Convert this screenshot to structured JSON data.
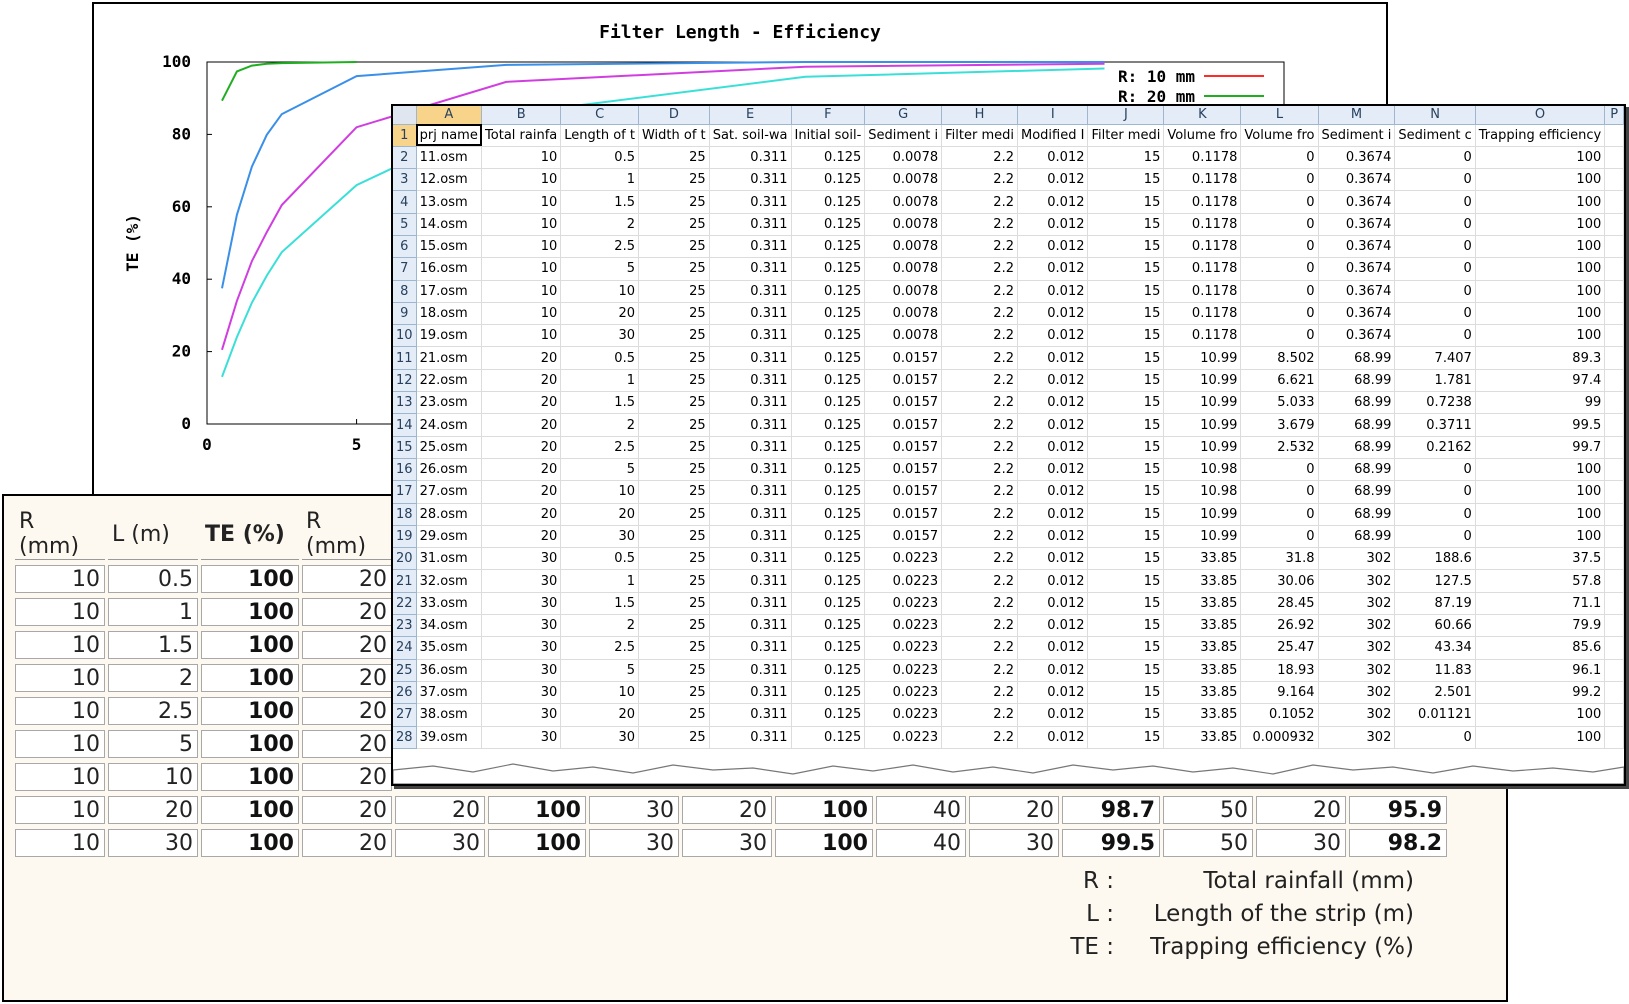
{
  "chart": {
    "title": "Filter Length - Efficiency",
    "ylabel": "TE (%)",
    "y_ticks": [
      "0",
      "20",
      "40",
      "60",
      "80",
      "100"
    ],
    "x_ticks": [
      "0",
      "5"
    ],
    "legend": [
      {
        "label": "R: 10 mm",
        "color": "#ff2a2a"
      },
      {
        "label": "R: 20 mm",
        "color": "#1fae1f"
      }
    ],
    "series_colors": [
      "#1fae1f",
      "#3a8fe8",
      "#d03ee0",
      "#3ae0d8"
    ]
  },
  "chart_data": {
    "type": "line",
    "ylim": [
      0,
      100
    ],
    "series": [
      {
        "x": [
          0.5,
          1,
          1.5,
          2,
          2.5,
          5
        ],
        "values": [
          89.3,
          97.4,
          99,
          99.5,
          99.7,
          100
        ]
      },
      {
        "x": [
          0.5,
          1,
          1.5,
          2,
          2.5,
          5,
          10,
          20,
          30
        ],
        "values": [
          37.5,
          57.8,
          71.1,
          79.9,
          85.6,
          96.1,
          99.2,
          100,
          100
        ]
      },
      {
        "x": [
          0.5,
          1,
          1.5,
          2,
          2.5,
          5,
          10,
          20,
          30
        ],
        "values": [
          20.5,
          34,
          45,
          53,
          60.5,
          82,
          94.5,
          98.7,
          99.5
        ]
      },
      {
        "x": [
          0.5,
          1,
          1.5,
          2,
          2.5,
          5,
          10,
          20,
          30
        ],
        "values": [
          13,
          24,
          33.5,
          41,
          47.5,
          66,
          85.5,
          95.9,
          98.2
        ]
      }
    ]
  },
  "summary": {
    "headers": [
      "R (mm)",
      "L (m)",
      "TE (%)",
      "R (mm)"
    ],
    "rows": [
      [
        "10",
        "0.5",
        "100",
        "20",
        "",
        "",
        "",
        "",
        "",
        "",
        "",
        "",
        "",
        ""
      ],
      [
        "10",
        "1",
        "100",
        "20",
        "",
        "",
        "",
        "",
        "",
        "",
        "",
        "",
        "",
        ""
      ],
      [
        "10",
        "1.5",
        "100",
        "20",
        "",
        "",
        "",
        "",
        "",
        "",
        "",
        "",
        "",
        ""
      ],
      [
        "10",
        "2",
        "100",
        "20",
        "",
        "",
        "",
        "",
        "",
        "",
        "",
        "",
        "",
        ""
      ],
      [
        "10",
        "2.5",
        "100",
        "20",
        "",
        "",
        "",
        "",
        "",
        "",
        "",
        "",
        "",
        ""
      ],
      [
        "10",
        "5",
        "100",
        "20",
        "",
        "",
        "",
        "",
        "",
        "",
        "",
        "",
        "",
        ""
      ],
      [
        "10",
        "10",
        "100",
        "20",
        "",
        "",
        "",
        "",
        "",
        "",
        "",
        "",
        "",
        ""
      ],
      [
        "10",
        "20",
        "100",
        "20",
        "20",
        "100",
        "30",
        "20",
        "100",
        "40",
        "20",
        "98.7",
        "50",
        "20",
        "95.9"
      ],
      [
        "10",
        "30",
        "100",
        "20",
        "30",
        "100",
        "30",
        "30",
        "100",
        "40",
        "30",
        "99.5",
        "50",
        "30",
        "98.2"
      ]
    ],
    "notes": [
      {
        "key": "R :",
        "value": "Total rainfall (mm)"
      },
      {
        "key": "L :",
        "value": "Length of the strip (m)"
      },
      {
        "key": "TE :",
        "value": "Trapping efficiency (%)"
      }
    ]
  },
  "sheet": {
    "columns": [
      "A",
      "B",
      "C",
      "D",
      "E",
      "F",
      "G",
      "H",
      "I",
      "J",
      "K",
      "L",
      "M",
      "N",
      "O",
      "P"
    ],
    "header_row": [
      "prj name",
      "Total rainfa",
      "Length of t",
      "Width of t",
      "Sat. soil-wa",
      "Initial soil-",
      "Sediment i",
      "Filter medi",
      "Modified I",
      "Filter medi",
      "Volume fro",
      "Volume fro",
      "Sediment i",
      "Sediment c",
      "Trapping efficiency",
      ""
    ],
    "rows": [
      [
        "11.osm",
        "10",
        "0.5",
        "25",
        "0.311",
        "0.125",
        "0.0078",
        "2.2",
        "0.012",
        "15",
        "0.1178",
        "0",
        "0.3674",
        "0",
        "100",
        ""
      ],
      [
        "12.osm",
        "10",
        "1",
        "25",
        "0.311",
        "0.125",
        "0.0078",
        "2.2",
        "0.012",
        "15",
        "0.1178",
        "0",
        "0.3674",
        "0",
        "100",
        ""
      ],
      [
        "13.osm",
        "10",
        "1.5",
        "25",
        "0.311",
        "0.125",
        "0.0078",
        "2.2",
        "0.012",
        "15",
        "0.1178",
        "0",
        "0.3674",
        "0",
        "100",
        ""
      ],
      [
        "14.osm",
        "10",
        "2",
        "25",
        "0.311",
        "0.125",
        "0.0078",
        "2.2",
        "0.012",
        "15",
        "0.1178",
        "0",
        "0.3674",
        "0",
        "100",
        ""
      ],
      [
        "15.osm",
        "10",
        "2.5",
        "25",
        "0.311",
        "0.125",
        "0.0078",
        "2.2",
        "0.012",
        "15",
        "0.1178",
        "0",
        "0.3674",
        "0",
        "100",
        ""
      ],
      [
        "16.osm",
        "10",
        "5",
        "25",
        "0.311",
        "0.125",
        "0.0078",
        "2.2",
        "0.012",
        "15",
        "0.1178",
        "0",
        "0.3674",
        "0",
        "100",
        ""
      ],
      [
        "17.osm",
        "10",
        "10",
        "25",
        "0.311",
        "0.125",
        "0.0078",
        "2.2",
        "0.012",
        "15",
        "0.1178",
        "0",
        "0.3674",
        "0",
        "100",
        ""
      ],
      [
        "18.osm",
        "10",
        "20",
        "25",
        "0.311",
        "0.125",
        "0.0078",
        "2.2",
        "0.012",
        "15",
        "0.1178",
        "0",
        "0.3674",
        "0",
        "100",
        ""
      ],
      [
        "19.osm",
        "10",
        "30",
        "25",
        "0.311",
        "0.125",
        "0.0078",
        "2.2",
        "0.012",
        "15",
        "0.1178",
        "0",
        "0.3674",
        "0",
        "100",
        ""
      ],
      [
        "21.osm",
        "20",
        "0.5",
        "25",
        "0.311",
        "0.125",
        "0.0157",
        "2.2",
        "0.012",
        "15",
        "10.99",
        "8.502",
        "68.99",
        "7.407",
        "89.3",
        ""
      ],
      [
        "22.osm",
        "20",
        "1",
        "25",
        "0.311",
        "0.125",
        "0.0157",
        "2.2",
        "0.012",
        "15",
        "10.99",
        "6.621",
        "68.99",
        "1.781",
        "97.4",
        ""
      ],
      [
        "23.osm",
        "20",
        "1.5",
        "25",
        "0.311",
        "0.125",
        "0.0157",
        "2.2",
        "0.012",
        "15",
        "10.99",
        "5.033",
        "68.99",
        "0.7238",
        "99",
        ""
      ],
      [
        "24.osm",
        "20",
        "2",
        "25",
        "0.311",
        "0.125",
        "0.0157",
        "2.2",
        "0.012",
        "15",
        "10.99",
        "3.679",
        "68.99",
        "0.3711",
        "99.5",
        ""
      ],
      [
        "25.osm",
        "20",
        "2.5",
        "25",
        "0.311",
        "0.125",
        "0.0157",
        "2.2",
        "0.012",
        "15",
        "10.99",
        "2.532",
        "68.99",
        "0.2162",
        "99.7",
        ""
      ],
      [
        "26.osm",
        "20",
        "5",
        "25",
        "0.311",
        "0.125",
        "0.0157",
        "2.2",
        "0.012",
        "15",
        "10.98",
        "0",
        "68.99",
        "0",
        "100",
        ""
      ],
      [
        "27.osm",
        "20",
        "10",
        "25",
        "0.311",
        "0.125",
        "0.0157",
        "2.2",
        "0.012",
        "15",
        "10.98",
        "0",
        "68.99",
        "0",
        "100",
        ""
      ],
      [
        "28.osm",
        "20",
        "20",
        "25",
        "0.311",
        "0.125",
        "0.0157",
        "2.2",
        "0.012",
        "15",
        "10.99",
        "0",
        "68.99",
        "0",
        "100",
        ""
      ],
      [
        "29.osm",
        "20",
        "30",
        "25",
        "0.311",
        "0.125",
        "0.0157",
        "2.2",
        "0.012",
        "15",
        "10.99",
        "0",
        "68.99",
        "0",
        "100",
        ""
      ],
      [
        "31.osm",
        "30",
        "0.5",
        "25",
        "0.311",
        "0.125",
        "0.0223",
        "2.2",
        "0.012",
        "15",
        "33.85",
        "31.8",
        "302",
        "188.6",
        "37.5",
        ""
      ],
      [
        "32.osm",
        "30",
        "1",
        "25",
        "0.311",
        "0.125",
        "0.0223",
        "2.2",
        "0.012",
        "15",
        "33.85",
        "30.06",
        "302",
        "127.5",
        "57.8",
        ""
      ],
      [
        "33.osm",
        "30",
        "1.5",
        "25",
        "0.311",
        "0.125",
        "0.0223",
        "2.2",
        "0.012",
        "15",
        "33.85",
        "28.45",
        "302",
        "87.19",
        "71.1",
        ""
      ],
      [
        "34.osm",
        "30",
        "2",
        "25",
        "0.311",
        "0.125",
        "0.0223",
        "2.2",
        "0.012",
        "15",
        "33.85",
        "26.92",
        "302",
        "60.66",
        "79.9",
        ""
      ],
      [
        "35.osm",
        "30",
        "2.5",
        "25",
        "0.311",
        "0.125",
        "0.0223",
        "2.2",
        "0.012",
        "15",
        "33.85",
        "25.47",
        "302",
        "43.34",
        "85.6",
        ""
      ],
      [
        "36.osm",
        "30",
        "5",
        "25",
        "0.311",
        "0.125",
        "0.0223",
        "2.2",
        "0.012",
        "15",
        "33.85",
        "18.93",
        "302",
        "11.83",
        "96.1",
        ""
      ],
      [
        "37.osm",
        "30",
        "10",
        "25",
        "0.311",
        "0.125",
        "0.0223",
        "2.2",
        "0.012",
        "15",
        "33.85",
        "9.164",
        "302",
        "2.501",
        "99.2",
        ""
      ],
      [
        "38.osm",
        "30",
        "20",
        "25",
        "0.311",
        "0.125",
        "0.0223",
        "2.2",
        "0.012",
        "15",
        "33.85",
        "0.1052",
        "302",
        "0.01121",
        "100",
        ""
      ],
      [
        "39.osm",
        "30",
        "30",
        "25",
        "0.311",
        "0.125",
        "0.0223",
        "2.2",
        "0.012",
        "15",
        "33.85",
        "0.000932",
        "302",
        "0",
        "100",
        ""
      ]
    ]
  }
}
